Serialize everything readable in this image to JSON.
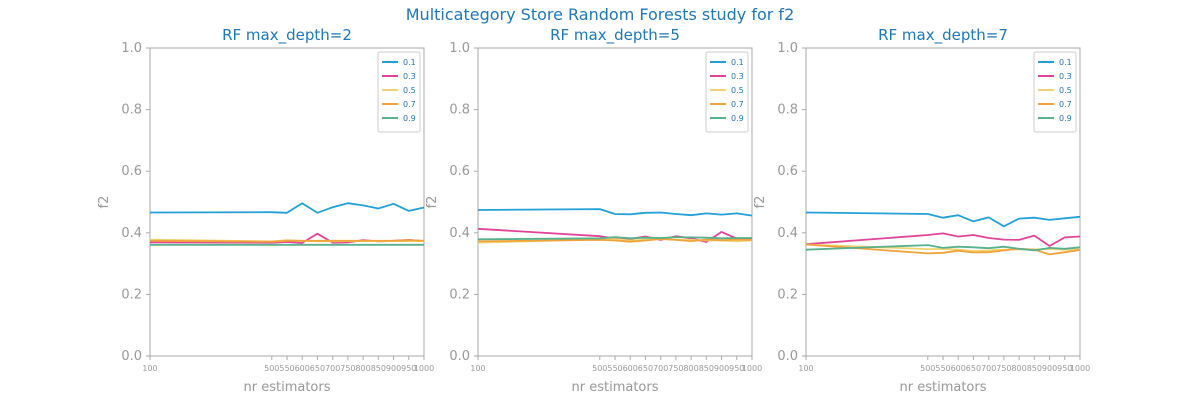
{
  "figure_title": "Multicategory Store Random Forests study for f2",
  "colors": {
    "title": "#1f77b4",
    "axis": "#aaaaaa",
    "tick_text": "#999999",
    "series": [
      "#23a0d6",
      "#e0459a",
      "#f1d472",
      "#f0a33b",
      "#58b08c"
    ]
  },
  "chart_data": [
    {
      "type": "line",
      "title": "RF max_depth=2",
      "xlabel": "nr estimators",
      "ylabel": "f2",
      "ylim": [
        0.0,
        1.0
      ],
      "xlim": [
        100,
        1000
      ],
      "yticks": [
        "0.0",
        "0.2",
        "0.4",
        "0.6",
        "0.8",
        "1.0"
      ],
      "x": [
        100,
        500,
        550,
        600,
        650,
        700,
        750,
        800,
        850,
        900,
        950,
        1000
      ],
      "legend_position": "top-right",
      "series": [
        {
          "name": "0.1",
          "values": [
            0.466,
            0.467,
            0.465,
            0.496,
            0.465,
            0.483,
            0.496,
            0.489,
            0.479,
            0.494,
            0.471,
            0.482
          ]
        },
        {
          "name": "0.3",
          "values": [
            0.369,
            0.368,
            0.37,
            0.367,
            0.397,
            0.368,
            0.369,
            0.376,
            0.372,
            0.374,
            0.377,
            0.373
          ]
        },
        {
          "name": "0.5",
          "values": [
            0.378,
            0.372,
            0.376,
            0.374,
            0.372,
            0.372,
            0.373,
            0.373,
            0.373,
            0.373,
            0.373,
            0.373
          ]
        },
        {
          "name": "0.7",
          "values": [
            0.374,
            0.371,
            0.374,
            0.374,
            0.374,
            0.374,
            0.374,
            0.374,
            0.374,
            0.374,
            0.376,
            0.374
          ]
        },
        {
          "name": "0.9",
          "values": [
            0.361,
            0.361,
            0.361,
            0.361,
            0.361,
            0.361,
            0.361,
            0.361,
            0.361,
            0.361,
            0.361,
            0.361
          ]
        }
      ]
    },
    {
      "type": "line",
      "title": "RF max_depth=5",
      "xlabel": "nr estimators",
      "ylabel": "f2",
      "ylim": [
        0.0,
        1.0
      ],
      "xlim": [
        100,
        1000
      ],
      "yticks": [
        "0.0",
        "0.2",
        "0.4",
        "0.6",
        "0.8",
        "1.0"
      ],
      "x": [
        100,
        500,
        550,
        600,
        650,
        700,
        750,
        800,
        850,
        900,
        950,
        1000
      ],
      "legend_position": "top-right",
      "series": [
        {
          "name": "0.1",
          "values": [
            0.474,
            0.477,
            0.461,
            0.46,
            0.465,
            0.466,
            0.461,
            0.457,
            0.463,
            0.459,
            0.463,
            0.456
          ]
        },
        {
          "name": "0.3",
          "values": [
            0.413,
            0.389,
            0.381,
            0.38,
            0.388,
            0.377,
            0.389,
            0.382,
            0.37,
            0.403,
            0.381,
            0.38
          ]
        },
        {
          "name": "0.5",
          "values": [
            0.368,
            0.379,
            0.38,
            0.375,
            0.378,
            0.38,
            0.378,
            0.377,
            0.375,
            0.375,
            0.372,
            0.375
          ]
        },
        {
          "name": "0.7",
          "values": [
            0.372,
            0.377,
            0.375,
            0.371,
            0.375,
            0.38,
            0.377,
            0.373,
            0.378,
            0.376,
            0.378,
            0.377
          ]
        },
        {
          "name": "0.9",
          "values": [
            0.379,
            0.382,
            0.386,
            0.382,
            0.384,
            0.383,
            0.386,
            0.385,
            0.384,
            0.382,
            0.383,
            0.383
          ]
        }
      ]
    },
    {
      "type": "line",
      "title": "RF max_depth=7",
      "xlabel": "nr estimators",
      "ylabel": "f2",
      "ylim": [
        0.0,
        1.0
      ],
      "xlim": [
        100,
        1000
      ],
      "yticks": [
        "0.0",
        "0.2",
        "0.4",
        "0.6",
        "0.8",
        "1.0"
      ],
      "x": [
        100,
        500,
        550,
        600,
        650,
        700,
        750,
        800,
        850,
        900,
        950,
        1000
      ],
      "legend_position": "top-right",
      "series": [
        {
          "name": "0.1",
          "values": [
            0.466,
            0.461,
            0.449,
            0.457,
            0.437,
            0.45,
            0.421,
            0.446,
            0.449,
            0.442,
            0.447,
            0.452
          ]
        },
        {
          "name": "0.3",
          "values": [
            0.363,
            0.393,
            0.398,
            0.388,
            0.393,
            0.383,
            0.378,
            0.377,
            0.391,
            0.357,
            0.385,
            0.388
          ]
        },
        {
          "name": "0.5",
          "values": [
            0.362,
            0.347,
            0.348,
            0.345,
            0.341,
            0.343,
            0.345,
            0.346,
            0.346,
            0.347,
            0.345,
            0.346
          ]
        },
        {
          "name": "0.7",
          "values": [
            0.362,
            0.333,
            0.335,
            0.342,
            0.336,
            0.337,
            0.343,
            0.348,
            0.345,
            0.33,
            0.337,
            0.344
          ]
        },
        {
          "name": "0.9",
          "values": [
            0.345,
            0.36,
            0.351,
            0.355,
            0.353,
            0.35,
            0.355,
            0.348,
            0.343,
            0.351,
            0.348,
            0.353
          ]
        }
      ]
    }
  ]
}
